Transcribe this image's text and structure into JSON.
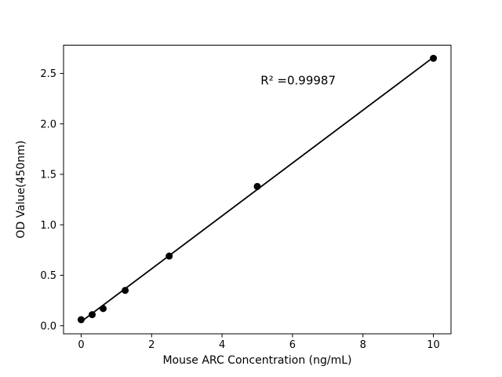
{
  "figure": {
    "background": "#ffffff"
  },
  "chart_data": {
    "type": "scatter",
    "title": "",
    "xlabel": "Mouse ARC Concentration (ng/mL)",
    "ylabel": "OD Value(450nm)",
    "annotation": {
      "text": "R² =0.99987",
      "x": 6.16,
      "y": 2.43
    },
    "x": [
      0,
      0.3125,
      0.625,
      1.25,
      2.5,
      5,
      10
    ],
    "y": [
      0.06,
      0.11,
      0.17,
      0.35,
      0.69,
      1.38,
      2.65
    ],
    "fit_line": {
      "x": [
        0,
        10
      ],
      "y": [
        0.04,
        2.66
      ]
    },
    "xticks": [
      0,
      2,
      4,
      6,
      8,
      10
    ],
    "xtick_labels": [
      "0",
      "2",
      "4",
      "6",
      "8",
      "10"
    ],
    "yticks": [
      0.0,
      0.5,
      1.0,
      1.5,
      2.0,
      2.5
    ],
    "ytick_labels": [
      "0.0",
      "0.5",
      "1.0",
      "1.5",
      "2.0",
      "2.5"
    ],
    "xlim": [
      -0.5,
      10.5
    ],
    "ylim": [
      -0.08,
      2.78
    ],
    "grid": false,
    "legend": null,
    "colors": {
      "points": "#000000",
      "line": "#000000",
      "axes": "#000000",
      "background": "#ffffff"
    }
  }
}
